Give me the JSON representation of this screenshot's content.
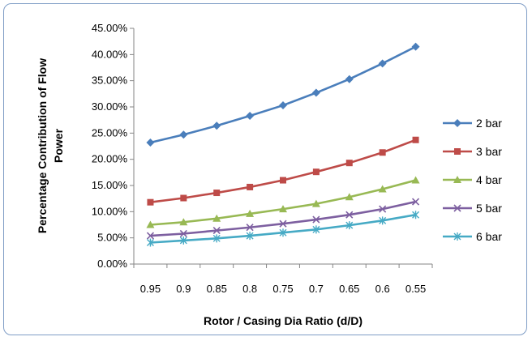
{
  "chart_data": {
    "type": "line",
    "title": "",
    "xlabel": "Rotor / Casing Dia Ratio (d/D)",
    "ylabel_lines": [
      "Percentage Contribution of Flow",
      "Power"
    ],
    "x": [
      "0.95",
      "0.9",
      "0.85",
      "0.8",
      "0.75",
      "0.7",
      "0.65",
      "0.6",
      "0.55"
    ],
    "y_ticks": [
      "0.00%",
      "5.00%",
      "10.00%",
      "15.00%",
      "20.00%",
      "25.00%",
      "30.00%",
      "35.00%",
      "40.00%",
      "45.00%"
    ],
    "ylim": [
      0,
      45
    ],
    "grid": false,
    "legend_position": "right",
    "series": [
      {
        "name": "2 bar",
        "color": "#4a7ebb",
        "marker": "diamond",
        "values": [
          23.2,
          24.7,
          26.4,
          28.3,
          30.3,
          32.7,
          35.3,
          38.3,
          41.5
        ]
      },
      {
        "name": "3 bar",
        "color": "#be4b48",
        "marker": "square",
        "values": [
          11.8,
          12.6,
          13.6,
          14.7,
          16.0,
          17.6,
          19.3,
          21.3,
          23.7
        ]
      },
      {
        "name": "4 bar",
        "color": "#98b954",
        "marker": "triangle",
        "values": [
          7.5,
          8.0,
          8.7,
          9.6,
          10.5,
          11.5,
          12.8,
          14.3,
          16.0
        ]
      },
      {
        "name": "5 bar",
        "color": "#7d5fa0",
        "marker": "x",
        "values": [
          5.4,
          5.8,
          6.4,
          7.0,
          7.7,
          8.5,
          9.4,
          10.5,
          11.9
        ]
      },
      {
        "name": "6 bar",
        "color": "#46aac5",
        "marker": "star",
        "values": [
          4.1,
          4.5,
          4.9,
          5.4,
          6.0,
          6.6,
          7.4,
          8.3,
          9.4
        ]
      }
    ]
  }
}
